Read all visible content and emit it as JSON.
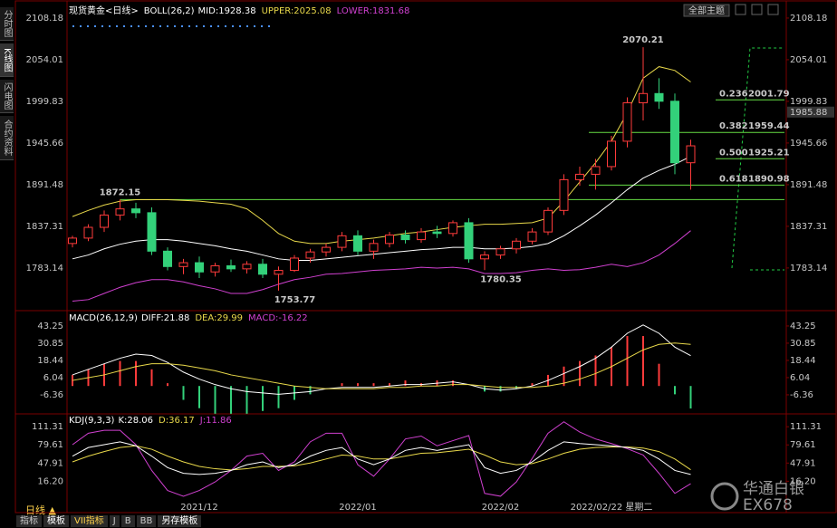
{
  "sidebar": [
    "分时图",
    "K线图",
    "闪电图",
    "合约资料"
  ],
  "toolbar": {
    "theme": "全部主题"
  },
  "bottom": {
    "period": "日线 ▲",
    "tabs": [
      "指标",
      "模板",
      "VII指标",
      "J",
      "B",
      "BB",
      "另存模板"
    ]
  },
  "watermark": {
    "cn": "华通白银",
    "en": "EX678"
  },
  "chart_data": [
    {
      "type": "candlestick",
      "title": "现货黄金<日线>",
      "indicator": "BOLL(26,2)",
      "categories": [
        null,
        null,
        null,
        null,
        null,
        null,
        null,
        null,
        "2021/12",
        null,
        null,
        null,
        null,
        null,
        null,
        null,
        null,
        null,
        "2022/01",
        null,
        null,
        null,
        null,
        null,
        null,
        null,
        null,
        "2022/02",
        null,
        null,
        null,
        null,
        null,
        null,
        "2022/02/22 星期二",
        null,
        null,
        null,
        null,
        null
      ],
      "open": [
        1815,
        1822,
        1836,
        1852,
        1860,
        1855,
        1805,
        1785,
        1790,
        1778,
        1786,
        1782,
        1788,
        1775,
        1780,
        1796,
        1804,
        1810,
        1825,
        1805,
        1815,
        1826,
        1820,
        1830,
        1828,
        1842,
        1795,
        1800,
        1808,
        1818,
        1830,
        1858,
        1898,
        1905,
        1915,
        1948,
        1998,
        2010,
        2000,
        1920
      ],
      "high": [
        1825,
        1840,
        1858,
        1872.15,
        1868,
        1862,
        1810,
        1795,
        1798,
        1790,
        1794,
        1792,
        1795,
        1785,
        1800,
        1808,
        1815,
        1830,
        1832,
        1820,
        1830,
        1832,
        1835,
        1838,
        1845,
        1848,
        1805,
        1812,
        1822,
        1835,
        1862,
        1905,
        1915,
        1925,
        1955,
        2005,
        2070.21,
        2030,
        2010,
        1950
      ],
      "low": [
        1810,
        1818,
        1830,
        1845,
        1848,
        1800,
        1780,
        1775,
        1770,
        1772,
        1778,
        1776,
        1770,
        1753.77,
        1778,
        1790,
        1798,
        1805,
        1800,
        1795,
        1810,
        1815,
        1816,
        1822,
        1824,
        1790,
        1780.35,
        1795,
        1802,
        1814,
        1826,
        1852,
        1890,
        1885,
        1910,
        1940,
        1975,
        1990,
        1905,
        1885
      ],
      "close": [
        1822,
        1836,
        1852,
        1860,
        1855,
        1805,
        1785,
        1790,
        1778,
        1786,
        1782,
        1788,
        1775,
        1780,
        1796,
        1804,
        1810,
        1825,
        1805,
        1815,
        1826,
        1820,
        1830,
        1828,
        1842,
        1795,
        1800,
        1808,
        1818,
        1830,
        1858,
        1898,
        1905,
        1915,
        1948,
        1998,
        2010,
        2000,
        1920,
        1942
      ],
      "up_color": "#ff3b3b",
      "down_color": "#33d17a",
      "series": [
        {
          "name": "MID:",
          "color": "#ffffff",
          "values": [
            1795,
            1800,
            1808,
            1814,
            1818,
            1820,
            1820,
            1818,
            1815,
            1812,
            1808,
            1805,
            1800,
            1795,
            1793,
            1793,
            1795,
            1797,
            1799,
            1801,
            1803,
            1805,
            1807,
            1808,
            1810,
            1810,
            1808,
            1808,
            1809,
            1811,
            1815,
            1825,
            1838,
            1852,
            1868,
            1885,
            1900,
            1910,
            1918,
            1928.38
          ]
        },
        {
          "name": "UPPER:",
          "color": "#e8d84a",
          "values": [
            1850,
            1858,
            1865,
            1870,
            1872,
            1872,
            1872,
            1871,
            1870,
            1868,
            1866,
            1860,
            1845,
            1828,
            1818,
            1815,
            1815,
            1818,
            1820,
            1822,
            1825,
            1828,
            1830,
            1833,
            1836,
            1838,
            1840,
            1840,
            1841,
            1842,
            1848,
            1870,
            1895,
            1920,
            1948,
            1985,
            2030,
            2045,
            2040,
            2025.08
          ]
        },
        {
          "name": "LOWER:",
          "color": "#d040d0",
          "values": [
            1740,
            1742,
            1750,
            1758,
            1764,
            1768,
            1768,
            1765,
            1760,
            1756,
            1750,
            1750,
            1755,
            1762,
            1768,
            1771,
            1775,
            1776,
            1778,
            1780,
            1781,
            1782,
            1784,
            1783,
            1784,
            1782,
            1776,
            1776,
            1777,
            1780,
            1782,
            1780,
            1781,
            1784,
            1788,
            1785,
            1790,
            1800,
            1815,
            1831.68
          ]
        }
      ],
      "ylim": [
        1730,
        2114
      ],
      "yticks": [
        2108.18,
        2054.01,
        1999.83,
        1945.66,
        1891.48,
        1837.31,
        1783.14
      ],
      "last_price": 1985.88,
      "fib": [
        {
          "ratio": "0.236",
          "value": 2001.79
        },
        {
          "ratio": "0.382",
          "value": 1959.44
        },
        {
          "ratio": "0.500",
          "value": 1925.21
        },
        {
          "ratio": "0.618",
          "value": 1890.98
        }
      ]
    },
    {
      "type": "macd",
      "title": "MACD(26,12,9)",
      "series": [
        {
          "name": "DIFF:",
          "color": "#ffffff",
          "values": [
            8,
            12,
            16,
            20,
            23,
            22,
            17,
            10,
            5,
            1,
            -2,
            -4,
            -5,
            -6,
            -5,
            -4,
            -2,
            -1,
            -1,
            -1,
            0,
            1,
            1,
            2,
            3,
            1,
            -2,
            -3,
            -2,
            0,
            4,
            9,
            14,
            20,
            28,
            38,
            44,
            38,
            28,
            21.88
          ]
        },
        {
          "name": "DEA:",
          "color": "#e8d84a",
          "values": [
            4,
            6,
            8,
            11,
            14,
            16,
            16,
            15,
            13,
            11,
            8,
            6,
            4,
            2,
            0,
            -1,
            -2,
            -2,
            -2,
            -2,
            -1,
            -1,
            0,
            0,
            1,
            1,
            0,
            -1,
            -1,
            -1,
            0,
            2,
            5,
            9,
            14,
            20,
            26,
            30,
            31,
            29.99
          ]
        },
        {
          "name": "MACD:",
          "color": "#d040d0",
          "values": [
            8,
            12,
            16,
            18,
            18,
            12,
            2,
            -10,
            -16,
            -20,
            -20,
            -20,
            -18,
            -16,
            -10,
            -6,
            0,
            2,
            2,
            2,
            2,
            4,
            2,
            4,
            4,
            0,
            -4,
            -4,
            -2,
            2,
            8,
            14,
            18,
            22,
            28,
            36,
            36,
            16,
            -6,
            -16.22
          ]
        }
      ],
      "ylim": [
        -18.8,
        53
      ],
      "yticks": [
        43.25,
        30.85,
        18.44,
        6.04,
        -6.36
      ]
    },
    {
      "type": "kdj",
      "title": "KDJ(9,3,3)",
      "series": [
        {
          "name": "K:",
          "color": "#ffffff",
          "values": [
            60,
            75,
            80,
            85,
            78,
            60,
            40,
            30,
            28,
            30,
            35,
            45,
            50,
            40,
            45,
            60,
            70,
            75,
            55,
            45,
            55,
            70,
            75,
            70,
            75,
            80,
            40,
            30,
            35,
            50,
            70,
            85,
            82,
            80,
            78,
            75,
            70,
            55,
            35,
            28.06
          ]
        },
        {
          "name": "D:",
          "color": "#e8d84a",
          "values": [
            50,
            60,
            68,
            75,
            78,
            72,
            60,
            50,
            42,
            38,
            36,
            38,
            42,
            42,
            43,
            48,
            55,
            62,
            60,
            55,
            55,
            60,
            65,
            66,
            69,
            72,
            62,
            50,
            45,
            47,
            55,
            65,
            72,
            75,
            76,
            76,
            74,
            68,
            55,
            36.17
          ]
        },
        {
          "name": "J:",
          "color": "#d040d0",
          "values": [
            80,
            100,
            105,
            105,
            80,
            35,
            0,
            -10,
            0,
            15,
            35,
            60,
            65,
            35,
            50,
            85,
            100,
            100,
            45,
            25,
            55,
            90,
            95,
            78,
            87,
            96,
            -5,
            -10,
            15,
            56,
            100,
            120,
            102,
            90,
            82,
            73,
            62,
            30,
            -5,
            11.86
          ]
        }
      ],
      "ylim": [
        -37,
        129
      ],
      "yticks": [
        111.31,
        79.61,
        47.91,
        {
          "value": 16.2,
          "label": "16.20"
        }
      ]
    }
  ]
}
